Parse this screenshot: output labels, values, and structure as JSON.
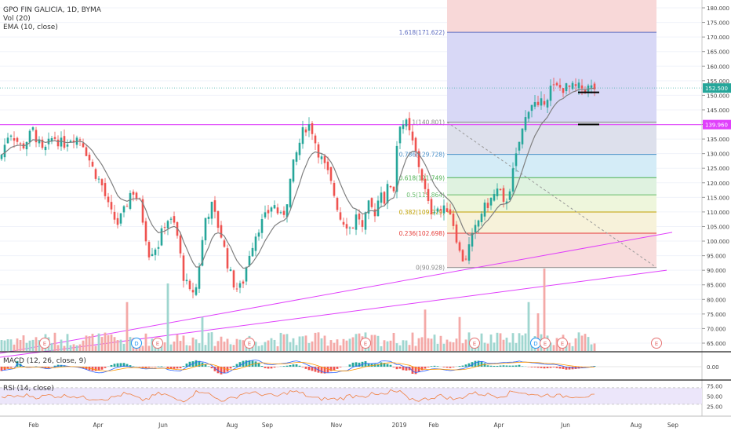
{
  "legend": {
    "symbol": "GPO FIN GALICIA, 1D, BYMA",
    "vol": "Vol (20)",
    "ema": "EMA (10, close)",
    "macd": "MACD (12, 26, close, 9)",
    "rsi": "RSI (14, close)"
  },
  "colors": {
    "up": "#26a69a",
    "down": "#ef5350",
    "ema": "#808080",
    "magenta": "#e040fb",
    "rsi_line": "#f08040",
    "rsi_band": "#ece6fa",
    "macd_line": "#2962ff",
    "signal_line": "#ff9800"
  },
  "price_badges": [
    {
      "value": "152.500",
      "price": 152.5,
      "color": "#26a69a"
    },
    {
      "value": "139.960",
      "price": 139.96,
      "color": "#e040fb"
    }
  ],
  "chart_data": [
    {
      "type": "candlestick",
      "price_axis": {
        "min": 65,
        "max": 180,
        "step": 5
      },
      "time_axis": [
        "Feb",
        "Apr",
        "Jun",
        "Aug",
        "Sep",
        "Nov",
        "2019",
        "Feb",
        "Apr",
        "Jun",
        "Aug",
        "Sep"
      ],
      "fibonacci": [
        {
          "level": "1.618",
          "label": "1.618(171.622)",
          "price": 171.622,
          "fill": null
        },
        {
          "level": "1",
          "label": "1(140.801)",
          "price": 140.801,
          "fill": "#dde0ec"
        },
        {
          "level": "0.786",
          "label": "0.786(129.728)",
          "price": 129.728,
          "fill": "#d4ecf7"
        },
        {
          "level": "0.618",
          "label": "0.618(121.749)",
          "price": 121.749,
          "fill": "#dff2e0"
        },
        {
          "level": "0.5",
          "label": "0.5(115.864)",
          "price": 115.864,
          "fill": "#eef6dc"
        },
        {
          "level": "0.382",
          "label": "0.382(109.979)",
          "price": 109.979,
          "fill": "#f7f2da"
        },
        {
          "level": "0.236",
          "label": "0.236(102.698)",
          "price": 102.698,
          "fill": "#f8dcdc"
        },
        {
          "level": "0",
          "label": "0(90.928)",
          "price": 90.928,
          "fill": null
        }
      ],
      "horizontal_line": 139.96,
      "last_price": 152.5,
      "range_box": {
        "top": 151.0,
        "bottom": 140.0
      },
      "waypoints": [
        [
          0,
          128
        ],
        [
          12,
          138
        ],
        [
          28,
          132
        ],
        [
          42,
          138
        ],
        [
          55,
          130
        ],
        [
          68,
          136
        ],
        [
          80,
          133
        ],
        [
          92,
          136
        ],
        [
          104,
          135
        ],
        [
          118,
          125
        ],
        [
          130,
          119
        ],
        [
          140,
          110
        ],
        [
          150,
          106
        ],
        [
          158,
          110
        ],
        [
          168,
          118
        ],
        [
          178,
          113
        ],
        [
          190,
          96
        ],
        [
          202,
          99
        ],
        [
          212,
          108
        ],
        [
          224,
          105
        ],
        [
          234,
          88
        ],
        [
          242,
          82
        ],
        [
          250,
          84
        ],
        [
          262,
          108
        ],
        [
          270,
          112
        ],
        [
          282,
          102
        ],
        [
          292,
          90
        ],
        [
          300,
          84
        ],
        [
          308,
          84
        ],
        [
          318,
          96
        ],
        [
          328,
          104
        ],
        [
          338,
          108
        ],
        [
          348,
          113
        ],
        [
          358,
          108
        ],
        [
          364,
          111
        ],
        [
          372,
          124
        ],
        [
          380,
          132
        ],
        [
          388,
          139
        ],
        [
          396,
          140
        ],
        [
          404,
          132
        ],
        [
          410,
          128
        ],
        [
          418,
          123
        ],
        [
          426,
          116
        ],
        [
          434,
          108
        ],
        [
          442,
          106
        ],
        [
          448,
          104
        ],
        [
          456,
          110
        ],
        [
          462,
          104
        ],
        [
          470,
          112
        ],
        [
          478,
          110
        ],
        [
          486,
          118
        ],
        [
          490,
          114
        ],
        [
          496,
          120
        ],
        [
          502,
          118
        ],
        [
          508,
          140.8
        ],
        [
          518,
          140
        ],
        [
          528,
          132
        ],
        [
          536,
          124
        ],
        [
          542,
          117
        ],
        [
          548,
          110
        ],
        [
          556,
          112
        ],
        [
          564,
          110
        ],
        [
          572,
          112
        ],
        [
          580,
          104
        ],
        [
          586,
          96
        ],
        [
          592,
          93
        ],
        [
          598,
          98
        ],
        [
          606,
          104
        ],
        [
          614,
          110
        ],
        [
          620,
          112
        ],
        [
          628,
          115
        ],
        [
          636,
          118
        ],
        [
          642,
          112
        ],
        [
          648,
          116
        ],
        [
          656,
          126
        ],
        [
          662,
          134
        ],
        [
          668,
          140
        ],
        [
          674,
          146
        ],
        [
          680,
          148
        ],
        [
          686,
          145
        ],
        [
          692,
          148
        ],
        [
          698,
          150
        ],
        [
          702,
          152.5
        ]
      ],
      "volume_spikes": [
        {
          "bar": 173,
          "size": 1.0
        },
        {
          "bar": 168,
          "size": 0.55
        },
        {
          "bar": 171,
          "size": 0.4
        },
        {
          "bar": 40,
          "size": 0.55
        },
        {
          "bar": 53,
          "size": 0.8
        },
        {
          "bar": 64,
          "size": 0.35
        },
        {
          "bar": 135,
          "size": 0.45
        },
        {
          "bar": 146,
          "size": 0.35
        }
      ],
      "events": [
        "E",
        "E",
        "D",
        "E",
        "E",
        "E",
        "E",
        "E",
        "D",
        "E",
        "E",
        "E"
      ]
    },
    {
      "type": "line",
      "name": "MACD (12, 26, close, 9)",
      "y_ticks": [
        "0.00"
      ]
    },
    {
      "type": "line",
      "name": "RSI (14, close)",
      "y_ticks": [
        "75.00",
        "50.00",
        "25.00"
      ]
    }
  ]
}
